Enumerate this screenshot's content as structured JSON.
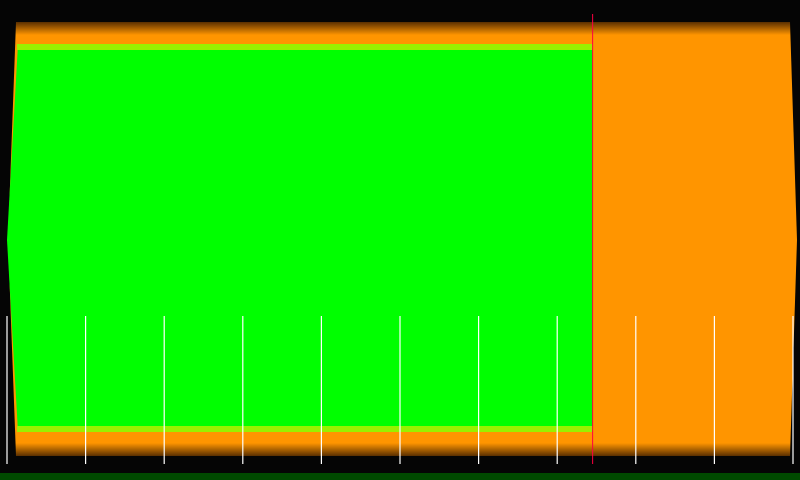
{
  "gauge": {
    "level_fraction": 0.745,
    "tick_count": 11,
    "colors": {
      "background": "#050505",
      "fill": "#00ff00",
      "track": "#ff9500",
      "track_dark": "#b86400",
      "highlight": "#9af000",
      "marker": "#ff0040",
      "tick": "#ffffff",
      "bottom_strip": "#004a00"
    }
  }
}
